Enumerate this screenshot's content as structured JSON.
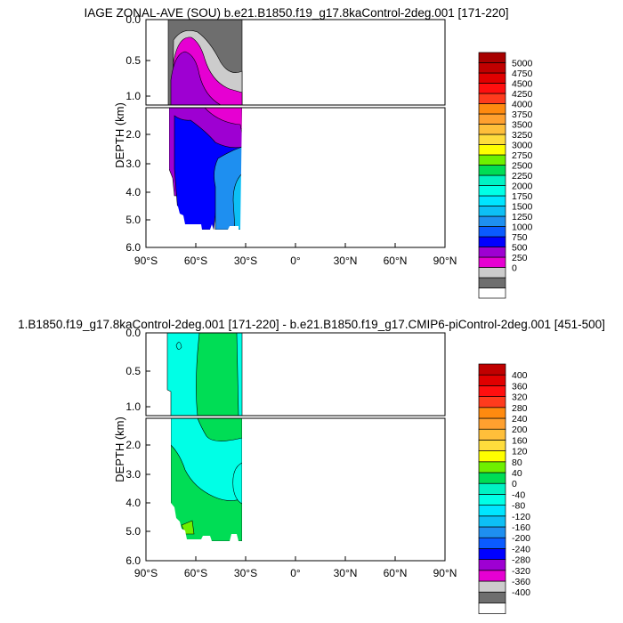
{
  "colors": {
    "top_levels": [
      "#ffffff",
      "#6e6e6e",
      "#cccccc",
      "#e600d2",
      "#9e00d2",
      "#0000ff",
      "#0a5bff",
      "#1e8ff0",
      "#0dbff5",
      "#00e5ff",
      "#00ffe6",
      "#00f2c4",
      "#00dd55",
      "#6ef000",
      "#ffff00",
      "#ffdd3c",
      "#ffbf3a",
      "#ffa02f",
      "#ff8a0f",
      "#ff3b1d",
      "#ff0f0f",
      "#e00000",
      "#c00000",
      "#a80000"
    ],
    "bottom_levels": [
      "#ffffff",
      "#6e6e6e",
      "#cccccc",
      "#e600d2",
      "#9e00d2",
      "#0000ff",
      "#0a5bff",
      "#1e8ff0",
      "#0dbff5",
      "#00e5ff",
      "#00ffe6",
      "#00f2c4",
      "#00dd55",
      "#6ef000",
      "#ffff00",
      "#ffdd3c",
      "#ffbf3a",
      "#ffa02f",
      "#ff8a0f",
      "#ff3b1d",
      "#ff0f0f",
      "#e00000",
      "#c00000"
    ]
  },
  "chart_data": [
    {
      "type": "heatmap",
      "title": "IAGE ZONAL-AVE (SOU) b.e21.B1850.f19_g17.8kaControl-2deg.001 [171-220]",
      "ylabel": "DEPTH (km)",
      "x_ticks": [
        "90°S",
        "60°S",
        "30°S",
        "0°",
        "30°N",
        "60°N",
        "90°N"
      ],
      "y_ticks_upper": [
        "0.0",
        "0.5",
        "1.0"
      ],
      "y_ticks_lower": [
        "2.0",
        "3.0",
        "4.0",
        "5.0",
        "6.0"
      ],
      "xlim": [
        -90,
        90
      ],
      "ylim": [
        6.0,
        0.0
      ],
      "colorbar_labels": [
        "5000",
        "4750",
        "4500",
        "4250",
        "4000",
        "3750",
        "3500",
        "3250",
        "3000",
        "2750",
        "2500",
        "2250",
        "2000",
        "1750",
        "1500",
        "1250",
        "1000",
        "750",
        "500",
        "250",
        "0"
      ],
      "regions": [
        {
          "level": 1,
          "lat_range": [
            -80,
            -34
          ],
          "depth_range": [
            0.0,
            0.8
          ]
        },
        {
          "level": 2,
          "lat_range": [
            -73,
            -34
          ],
          "depth_range": [
            0.15,
            1.1
          ]
        },
        {
          "level": 3,
          "lat_range": [
            -76,
            -36
          ],
          "depth_range": [
            0.25,
            1.9
          ]
        },
        {
          "level": 4,
          "lat_range": [
            -76,
            -36
          ],
          "depth_range": [
            0.4,
            2.6
          ]
        },
        {
          "level": 5,
          "lat_range": [
            -74,
            -47
          ],
          "depth_range": [
            1.6,
            5.3
          ]
        },
        {
          "level": 6,
          "lat_range": [
            -52,
            -34
          ],
          "depth_range": [
            2.6,
            5.3
          ]
        },
        {
          "level": 7,
          "lat_range": [
            -47,
            -34
          ],
          "depth_range": [
            3.6,
            5.3
          ]
        }
      ]
    },
    {
      "type": "heatmap",
      "title": "1.B1850.f19_g17.8kaControl-2deg.001 [171-220] - b.e21.B1850.f19_g17.CMIP6-piControl-2deg.001 [451-500]",
      "ylabel": "DEPTH (km)",
      "x_ticks": [
        "90°S",
        "60°S",
        "30°S",
        "0°",
        "30°N",
        "60°N",
        "90°N"
      ],
      "y_ticks_upper": [
        "0.0",
        "0.5",
        "1.0"
      ],
      "y_ticks_lower": [
        "2.0",
        "3.0",
        "4.0",
        "5.0",
        "6.0"
      ],
      "xlim": [
        -90,
        90
      ],
      "ylim": [
        6.0,
        0.0
      ],
      "colorbar_labels": [
        "400",
        "360",
        "320",
        "280",
        "240",
        "200",
        "160",
        "120",
        "80",
        "40",
        "0",
        "-40",
        "-80",
        "-120",
        "-160",
        "-200",
        "-240",
        "-280",
        "-320",
        "-360",
        "-400"
      ],
      "regions": [
        {
          "level": 10,
          "lat_range": [
            -80,
            -34
          ],
          "depth_range": [
            0.0,
            5.35
          ]
        },
        {
          "level": 12,
          "lat_range": [
            -62,
            -34
          ],
          "depth_range": [
            0.0,
            1.8
          ]
        },
        {
          "level": 12,
          "lat_range": [
            -76,
            -60
          ],
          "depth_range": [
            3.0,
            5.35
          ]
        },
        {
          "level": 12,
          "lat_range": [
            -60,
            -40
          ],
          "depth_range": [
            3.7,
            5.35
          ]
        },
        {
          "level": 13,
          "lat_range": [
            -70,
            -65
          ],
          "depth_range": [
            5.0,
            5.35
          ]
        }
      ]
    }
  ]
}
